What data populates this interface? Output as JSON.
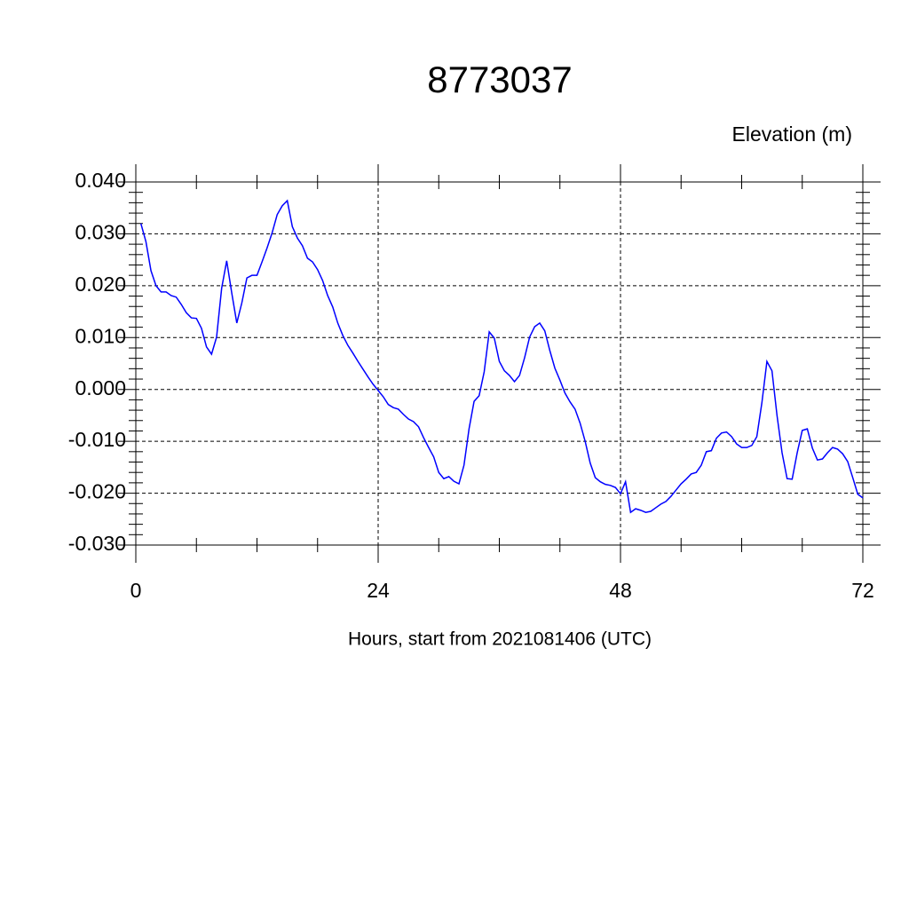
{
  "chart_data": {
    "type": "line",
    "title": "8773037",
    "ylabel": "Elevation (m)",
    "xlabel": "Hours, start from 2021081406 (UTC)",
    "xlim": [
      0,
      72
    ],
    "xticks": [
      0,
      24,
      48,
      72
    ],
    "ylim": [
      -0.03,
      0.04
    ],
    "yticks": [
      {
        "value": -0.03,
        "label": "-0.030"
      },
      {
        "value": -0.02,
        "label": "-0.020"
      },
      {
        "value": -0.01,
        "label": "-0.010"
      },
      {
        "value": 0,
        "label": "0.000"
      },
      {
        "value": 0.01,
        "label": "0.010"
      },
      {
        "value": 0.02,
        "label": "0.020"
      },
      {
        "value": 0.03,
        "label": "0.030"
      },
      {
        "value": 0.04,
        "label": "0.040"
      }
    ],
    "grid": true,
    "x": [
      0.5,
      1,
      1.5,
      2,
      2.5,
      3,
      3.5,
      4,
      4.5,
      5,
      5.5,
      6,
      6.5,
      7,
      7.5,
      8,
      8.5,
      9,
      9.5,
      10,
      10.5,
      11,
      11.5,
      12,
      12.5,
      13,
      13.5,
      14,
      14.5,
      15,
      15.5,
      16,
      16.5,
      17,
      17.5,
      18,
      18.5,
      19,
      19.5,
      20,
      20.5,
      21,
      21.5,
      22,
      22.5,
      23,
      23.5,
      24,
      24.5,
      25,
      25.5,
      26,
      26.5,
      27,
      27.5,
      28,
      28.5,
      29,
      29.5,
      30,
      30.5,
      31,
      31.5,
      32,
      32.5,
      33,
      33.5,
      34,
      34.5,
      35,
      35.5,
      36,
      36.5,
      37,
      37.5,
      38,
      38.5,
      39,
      39.5,
      40,
      40.5,
      41,
      41.5,
      42,
      42.5,
      43,
      43.5,
      44,
      44.5,
      45,
      45.5,
      46,
      46.5,
      47,
      47.5,
      48,
      48.5,
      49,
      49.5,
      50,
      50.5,
      51,
      51.5,
      52,
      52.5,
      53,
      53.5,
      54,
      54.5,
      55,
      55.5,
      56,
      56.5,
      57,
      57.5,
      58,
      58.5,
      59,
      59.5,
      60,
      60.5,
      61,
      61.5,
      62,
      62.5,
      63,
      63.5,
      64,
      64.5,
      65,
      65.5,
      66,
      66.5,
      67,
      67.5,
      68,
      68.5,
      69,
      69.5,
      70,
      70.5,
      71,
      71.5,
      72
    ],
    "series": [
      {
        "name": "Elevation",
        "color": "#0000ff",
        "values": [
          0.032,
          0.0285,
          0.0229,
          0.02,
          0.0188,
          0.0188,
          0.0181,
          0.0178,
          0.0164,
          0.0148,
          0.0138,
          0.0137,
          0.0118,
          0.0082,
          0.0068,
          0.0101,
          0.0195,
          0.0248,
          0.0186,
          0.0128,
          0.0167,
          0.0215,
          0.022,
          0.022,
          0.0246,
          0.0273,
          0.0302,
          0.0337,
          0.0354,
          0.0364,
          0.0314,
          0.0292,
          0.0277,
          0.0253,
          0.0246,
          0.0231,
          0.021,
          0.0181,
          0.0159,
          0.0128,
          0.0104,
          0.0085,
          0.007,
          0.0054,
          0.0039,
          0.0024,
          0.001,
          -0.0002,
          -0.0014,
          -0.0029,
          -0.0035,
          -0.0038,
          -0.0048,
          -0.0057,
          -0.0062,
          -0.0072,
          -0.0093,
          -0.0112,
          -0.013,
          -0.016,
          -0.0172,
          -0.0168,
          -0.0177,
          -0.0182,
          -0.0146,
          -0.0076,
          -0.0023,
          -0.0012,
          0.0034,
          0.0111,
          0.0099,
          0.0054,
          0.0036,
          0.0027,
          0.0015,
          0.0027,
          0.0061,
          0.0101,
          0.0121,
          0.0128,
          0.0113,
          0.0075,
          0.0041,
          0.0018,
          -0.0007,
          -0.0024,
          -0.0038,
          -0.0065,
          -0.01,
          -0.0142,
          -0.017,
          -0.0178,
          -0.0183,
          -0.0185,
          -0.0189,
          -0.0201,
          -0.0178,
          -0.0237,
          -0.023,
          -0.0233,
          -0.0237,
          -0.0235,
          -0.0228,
          -0.0221,
          -0.0216,
          -0.0206,
          -0.0194,
          -0.0182,
          -0.0173,
          -0.0163,
          -0.016,
          -0.0146,
          -0.012,
          -0.0118,
          -0.0094,
          -0.0084,
          -0.0082,
          -0.0091,
          -0.0105,
          -0.0112,
          -0.0112,
          -0.0108,
          -0.0091,
          -0.0026,
          0.0054,
          0.0036,
          -0.005,
          -0.0122,
          -0.0172,
          -0.0173,
          -0.0122,
          -0.0079,
          -0.0076,
          -0.0113,
          -0.0136,
          -0.0134,
          -0.0122,
          -0.0112,
          -0.0115,
          -0.0124,
          -0.0139,
          -0.017,
          -0.0202,
          -0.0209
        ]
      }
    ]
  }
}
